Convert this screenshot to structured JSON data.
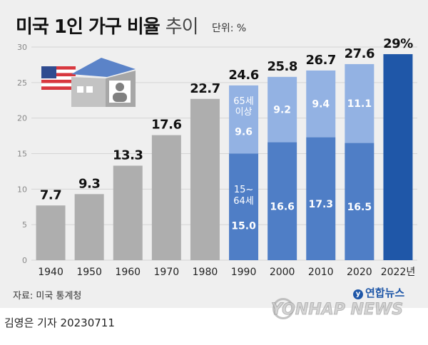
{
  "header": {
    "title_main": "미국 1인 가구 비율",
    "title_suffix": "추이",
    "unit": "단위: %"
  },
  "footer": {
    "source": "자료: 미국 통계청",
    "brand": "연합뉴스",
    "watermark": "YONHAP NEWS",
    "byline": "김영은 기자  20230711"
  },
  "colors": {
    "gray_bar": "#aeaeae",
    "bar_dark_blue": "#4f7ec6",
    "bar_light_blue": "#93b2e3",
    "final_bar": "#1f57a8",
    "background": "#efefef",
    "grid": "#d4d4d4"
  },
  "chart_data": {
    "type": "bar",
    "title": "미국 1인 가구 비율 추이",
    "unit": "%",
    "xlabel": "",
    "ylabel": "",
    "ylim": [
      0,
      30
    ],
    "yticks": [
      0,
      5,
      10,
      15,
      20,
      25,
      30
    ],
    "categories": [
      "1940",
      "1950",
      "1960",
      "1970",
      "1980",
      "1990",
      "2000",
      "2010",
      "2020",
      "2022년"
    ],
    "totals": [
      7.7,
      9.3,
      13.3,
      17.6,
      22.7,
      24.6,
      25.8,
      26.7,
      27.6,
      29
    ],
    "total_labels": [
      "7.7",
      "9.3",
      "13.3",
      "17.6",
      "22.7",
      "24.6",
      "25.8",
      "26.7",
      "27.6",
      "29%"
    ],
    "series": [
      {
        "name": "15~64세",
        "values": [
          null,
          null,
          null,
          null,
          null,
          15.0,
          16.6,
          17.3,
          16.5,
          null
        ],
        "labels": [
          "",
          "",
          "",
          "",
          "",
          "15.0",
          "16.6",
          "17.3",
          "16.5",
          ""
        ]
      },
      {
        "name": "65세 이상",
        "values": [
          null,
          null,
          null,
          null,
          null,
          9.6,
          9.2,
          9.4,
          11.1,
          null
        ],
        "labels": [
          "",
          "",
          "",
          "",
          "",
          "9.6",
          "9.2",
          "9.4",
          "11.1",
          ""
        ]
      }
    ],
    "annotations": {
      "age_under": "15~",
      "age_under_2": "64세",
      "age_over": "65세",
      "age_over_2": "이상"
    }
  }
}
